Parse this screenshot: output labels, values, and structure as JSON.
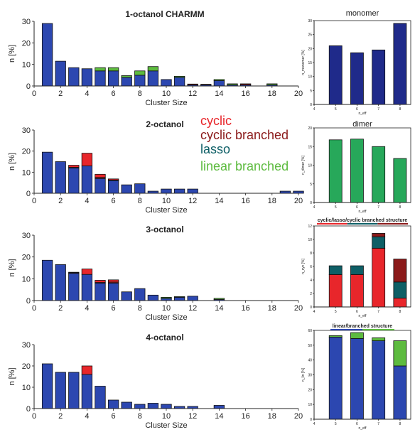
{
  "legend": {
    "entries": [
      {
        "label": "cyclic",
        "color": "#e8262b"
      },
      {
        "label": "cyclic branched",
        "color": "#8b1a1a"
      },
      {
        "label": "lasso",
        "color": "#0e5f66"
      },
      {
        "label": "linear branched",
        "color": "#5dbb3f"
      }
    ]
  },
  "chart_data": [
    {
      "type": "bar",
      "stacked": true,
      "title": "1-octanol CHARMM",
      "xlabel": "Cluster Size",
      "ylabel": "n [%]",
      "xlim": [
        0,
        20
      ],
      "ylim": [
        0,
        30
      ],
      "xticks": [
        "0",
        "2",
        "4",
        "6",
        "8",
        "10",
        "12",
        "14",
        "16",
        "18",
        "20"
      ],
      "yticks": [
        "0",
        "10",
        "20",
        "30"
      ],
      "x": [
        1,
        2,
        3,
        4,
        5,
        6,
        7,
        8,
        9,
        10,
        11,
        12,
        13,
        14,
        15,
        16,
        17,
        18
      ],
      "series": [
        {
          "color": "#2c47b0",
          "values": [
            29,
            11.5,
            8.5,
            8,
            7,
            7,
            4,
            5,
            7,
            3,
            4,
            0.5,
            0.5,
            2.5,
            0.5,
            0.5,
            0,
            0.5
          ]
        },
        {
          "color": "#5dbb3f",
          "values": [
            0,
            0,
            0,
            0,
            1.5,
            1.5,
            0.8,
            2,
            2,
            0,
            0.5,
            0,
            0,
            0.5,
            0.5,
            0,
            0,
            0.5
          ]
        },
        {
          "color": "#0e5f66",
          "values": [
            0,
            0,
            0,
            0,
            0,
            0,
            0,
            0,
            0,
            0,
            0,
            0,
            0,
            0,
            0,
            0,
            0,
            0
          ]
        },
        {
          "color": "#8b1a1a",
          "values": [
            0,
            0,
            0,
            0,
            0,
            0,
            0,
            0,
            0,
            0,
            0,
            0.4,
            0.3,
            0,
            0,
            0.5,
            0,
            0
          ]
        },
        {
          "color": "#e8262b",
          "values": [
            0,
            0,
            0,
            0,
            0,
            0,
            0,
            0,
            0,
            0,
            0,
            0,
            0,
            0,
            0,
            0,
            0,
            0
          ]
        }
      ]
    },
    {
      "type": "bar",
      "stacked": true,
      "title": "2-octanol",
      "xlabel": "Cluster Size",
      "ylabel": "n [%]",
      "xlim": [
        0,
        20
      ],
      "ylim": [
        0,
        30
      ],
      "xticks": [
        "0",
        "2",
        "4",
        "6",
        "8",
        "10",
        "12",
        "14",
        "16",
        "18",
        "20"
      ],
      "yticks": [
        "0",
        "10",
        "20",
        "30"
      ],
      "x": [
        1,
        2,
        3,
        4,
        5,
        6,
        7,
        8,
        9,
        10,
        11,
        12,
        19,
        20
      ],
      "series": [
        {
          "color": "#2c47b0",
          "values": [
            19.5,
            15,
            12,
            13,
            7,
            6,
            4,
            4.5,
            1,
            2,
            2,
            2,
            1,
            1
          ]
        },
        {
          "color": "#5dbb3f",
          "values": [
            0,
            0,
            0,
            0,
            0,
            0,
            0,
            0,
            0,
            0,
            0,
            0,
            0,
            0
          ]
        },
        {
          "color": "#0e5f66",
          "values": [
            0,
            0,
            0,
            0,
            0,
            0,
            0,
            0,
            0,
            0,
            0,
            0,
            0,
            0
          ]
        },
        {
          "color": "#8b1a1a",
          "values": [
            0,
            0,
            0.3,
            0,
            0.5,
            0.3,
            0,
            0,
            0,
            0,
            0,
            0,
            0,
            0
          ]
        },
        {
          "color": "#e8262b",
          "values": [
            0,
            0,
            1,
            6,
            1.5,
            0.5,
            0,
            0,
            0,
            0,
            0,
            0,
            0,
            0
          ]
        }
      ]
    },
    {
      "type": "bar",
      "stacked": true,
      "title": "3-octanol",
      "xlabel": "Cluster Size",
      "ylabel": "n [%]",
      "xlim": [
        0,
        20
      ],
      "ylim": [
        0,
        30
      ],
      "xticks": [
        "0",
        "2",
        "4",
        "6",
        "8",
        "10",
        "12",
        "14",
        "16",
        "18",
        "20"
      ],
      "yticks": [
        "0",
        "10",
        "20",
        "30"
      ],
      "x": [
        1,
        2,
        3,
        4,
        5,
        6,
        7,
        8,
        9,
        10,
        11,
        12,
        14
      ],
      "series": [
        {
          "color": "#2c47b0",
          "values": [
            18.5,
            16.5,
            12.5,
            12,
            8,
            8,
            4,
            5.5,
            2.5,
            1,
            1.5,
            2,
            0.5
          ]
        },
        {
          "color": "#5dbb3f",
          "values": [
            0,
            0,
            0,
            0,
            0,
            0,
            0,
            0,
            0,
            0.5,
            0.3,
            0,
            0.5
          ]
        },
        {
          "color": "#0e5f66",
          "values": [
            0,
            0,
            0,
            0,
            0,
            0,
            0,
            0,
            0,
            0,
            0,
            0,
            0
          ]
        },
        {
          "color": "#8b1a1a",
          "values": [
            0,
            0,
            0.3,
            0,
            0.3,
            0.5,
            0,
            0,
            0,
            0,
            0,
            0,
            0
          ]
        },
        {
          "color": "#e8262b",
          "values": [
            0,
            0,
            0.2,
            2.5,
            1,
            1,
            0,
            0,
            0,
            0,
            0,
            0,
            0
          ]
        }
      ]
    },
    {
      "type": "bar",
      "stacked": true,
      "title": "4-octanol",
      "xlabel": "Cluster Size",
      "ylabel": "n [%]",
      "xlim": [
        0,
        20
      ],
      "ylim": [
        0,
        30
      ],
      "xticks": [
        "0",
        "2",
        "4",
        "6",
        "8",
        "10",
        "12",
        "14",
        "16",
        "18",
        "20"
      ],
      "yticks": [
        "0",
        "10",
        "20",
        "30"
      ],
      "x": [
        1,
        2,
        3,
        4,
        5,
        6,
        7,
        8,
        9,
        10,
        11,
        12,
        14
      ],
      "series": [
        {
          "color": "#2c47b0",
          "values": [
            21,
            17,
            17,
            16,
            10.5,
            4,
            3,
            2,
            2.5,
            2,
            1,
            1,
            1.5
          ]
        },
        {
          "color": "#5dbb3f",
          "values": [
            0,
            0,
            0,
            0,
            0,
            0,
            0,
            0,
            0,
            0,
            0,
            0,
            0
          ]
        },
        {
          "color": "#0e5f66",
          "values": [
            0,
            0,
            0,
            0,
            0,
            0,
            0,
            0,
            0,
            0,
            0,
            0,
            0
          ]
        },
        {
          "color": "#8b1a1a",
          "values": [
            0,
            0,
            0,
            0,
            0,
            0,
            0,
            0,
            0,
            0,
            0,
            0,
            0
          ]
        },
        {
          "color": "#e8262b",
          "values": [
            0,
            0,
            0,
            4,
            0,
            0,
            0,
            0,
            0,
            0,
            0,
            0,
            0
          ]
        }
      ]
    },
    {
      "type": "bar",
      "stacked": true,
      "title": "monomer",
      "xlabel": "n_eff",
      "ylabel": "n_monomer [%]",
      "xlim": [
        4,
        8.5
      ],
      "ylim": [
        0,
        30
      ],
      "xticks": [
        "4",
        "5",
        "6",
        "7",
        "8"
      ],
      "yticks": [
        "0",
        "5",
        "10",
        "15",
        "20",
        "25",
        "30"
      ],
      "x": [
        5,
        6,
        7,
        8
      ],
      "series": [
        {
          "color": "#1f2a8a",
          "values": [
            21,
            18.5,
            19.5,
            29
          ]
        }
      ]
    },
    {
      "type": "bar",
      "stacked": true,
      "title": "dimer",
      "xlabel": "n_eff",
      "ylabel": "n_dimer [%]",
      "xlim": [
        4,
        8.5
      ],
      "ylim": [
        0,
        20
      ],
      "xticks": [
        "4",
        "5",
        "6",
        "7",
        "8"
      ],
      "yticks": [
        "0",
        "5",
        "10",
        "15",
        "20"
      ],
      "x": [
        5,
        6,
        7,
        8
      ],
      "series": [
        {
          "color": "#27a85a",
          "values": [
            16.8,
            17,
            15,
            11.8
          ]
        }
      ]
    },
    {
      "type": "bar",
      "stacked": true,
      "title": "cyclic/lasso/cyclic branched structure",
      "xlabel": "n_eff",
      "ylabel": "n_cyc [%]",
      "title_underline": [
        "#e8262b",
        "#0e5f66",
        "#8b1a1a"
      ],
      "xlim": [
        4,
        8.5
      ],
      "ylim": [
        0,
        12
      ],
      "xticks": [
        "4",
        "5",
        "6",
        "7",
        "8"
      ],
      "yticks": [
        "0",
        "2",
        "4",
        "6",
        "8",
        "10",
        "12"
      ],
      "x": [
        5,
        6,
        7,
        8
      ],
      "series": [
        {
          "color": "#e8262b",
          "values": [
            4.8,
            4.8,
            8.7,
            1.3
          ]
        },
        {
          "color": "#0e5f66",
          "values": [
            1.3,
            1.3,
            1.7,
            2.4
          ]
        },
        {
          "color": "#8b1a1a",
          "values": [
            0,
            0,
            0.5,
            3.4
          ]
        }
      ]
    },
    {
      "type": "bar",
      "stacked": true,
      "title": "linear/branched structure",
      "xlabel": "n_eff",
      "ylabel": "n_lin [%]",
      "title_underline": [
        "#2c47b0",
        "#5dbb3f"
      ],
      "xlim": [
        4,
        8.5
      ],
      "ylim": [
        0,
        60
      ],
      "xticks": [
        "4",
        "5",
        "6",
        "7",
        "8"
      ],
      "yticks": [
        "0",
        "10",
        "20",
        "30",
        "40",
        "50",
        "60"
      ],
      "x": [
        5,
        6,
        7,
        8
      ],
      "series": [
        {
          "color": "#2c47b0",
          "values": [
            55.5,
            54.5,
            53,
            36
          ]
        },
        {
          "color": "#5dbb3f",
          "values": [
            1,
            4,
            2,
            17
          ]
        }
      ]
    }
  ]
}
